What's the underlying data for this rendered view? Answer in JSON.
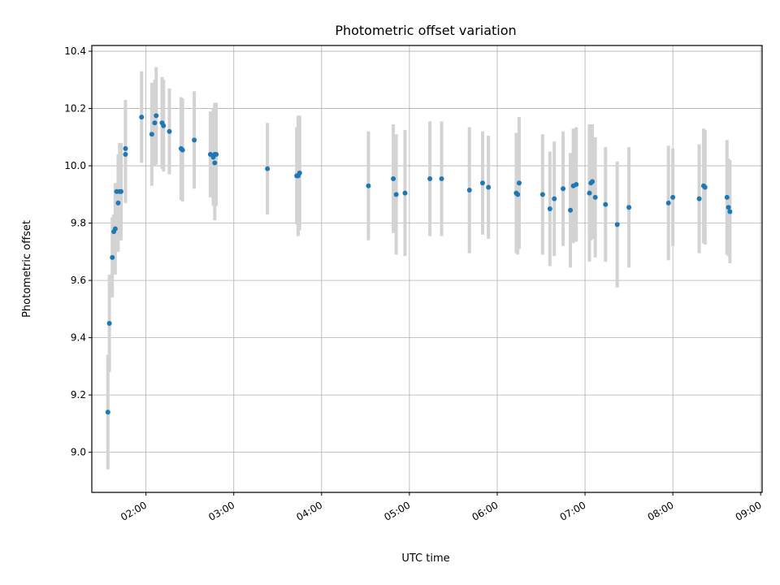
{
  "chart_data": {
    "type": "scatter",
    "title": "Photometric offset variation",
    "xlabel": "UTC time",
    "ylabel": "Photometric offset",
    "xlim": [
      "01:23",
      "09:01"
    ],
    "ylim": [
      8.86,
      10.42
    ],
    "xticks": [
      "02:00",
      "03:00",
      "04:00",
      "05:00",
      "06:00",
      "07:00",
      "08:00",
      "09:00"
    ],
    "yticks": [
      9.0,
      9.2,
      9.4,
      9.6,
      9.8,
      10.0,
      10.2,
      10.4
    ],
    "ytick_labels": [
      "9.0",
      "9.2",
      "9.4",
      "9.6",
      "9.8",
      "10.0",
      "10.2",
      "10.4"
    ],
    "grid": true,
    "colors": {
      "points": "#1f77b4",
      "errorbars": "#d3d3d3"
    },
    "series": [
      {
        "x": [
          "01:34",
          "01:35",
          "01:37",
          "01:38",
          "01:39",
          "01:40",
          "01:41",
          "01:42",
          "01:43",
          "01:46",
          "01:46",
          "01:57",
          "02:04",
          "02:06",
          "02:07",
          "02:11",
          "02:12",
          "02:16",
          "02:24",
          "02:25",
          "02:33",
          "02:44",
          "02:46",
          "02:47",
          "02:47",
          "02:48",
          "03:23",
          "03:43",
          "03:44",
          "03:45",
          "04:32",
          "04:49",
          "04:51",
          "04:57",
          "05:14",
          "05:22",
          "05:41",
          "05:50",
          "05:54",
          "06:13",
          "06:14",
          "06:15",
          "06:31",
          "06:36",
          "06:39",
          "06:45",
          "06:50",
          "06:52",
          "06:54",
          "07:03",
          "07:04",
          "07:05",
          "07:07",
          "07:14",
          "07:22",
          "07:30",
          "07:57",
          "08:00",
          "08:18",
          "08:21",
          "08:22",
          "08:37",
          "08:38",
          "08:39"
        ],
        "y": [
          9.14,
          9.45,
          9.68,
          9.77,
          9.78,
          9.91,
          9.87,
          9.91,
          9.91,
          10.06,
          10.04,
          10.17,
          10.11,
          10.15,
          10.175,
          10.15,
          10.14,
          10.12,
          10.06,
          10.055,
          10.09,
          10.04,
          10.03,
          10.01,
          10.04,
          10.04,
          9.99,
          9.965,
          9.965,
          9.975,
          9.93,
          9.955,
          9.9,
          9.905,
          9.955,
          9.955,
          9.915,
          9.94,
          9.925,
          9.905,
          9.9,
          9.94,
          9.9,
          9.85,
          9.885,
          9.92,
          9.845,
          9.93,
          9.935,
          9.905,
          9.94,
          9.945,
          9.89,
          9.865,
          9.795,
          9.855,
          9.87,
          9.89,
          9.885,
          9.93,
          9.925,
          9.89,
          9.855,
          9.84
        ],
        "yerr": [
          0.2,
          0.17,
          0.14,
          0.06,
          0.16,
          0.03,
          0.17,
          0.17,
          0.17,
          0.17,
          0.17,
          0.16,
          0.18,
          0.15,
          0.17,
          0.16,
          0.16,
          0.15,
          0.18,
          0.18,
          0.17,
          0.15,
          0.17,
          0.2,
          0.18,
          0.18,
          0.16,
          0.17,
          0.21,
          0.2,
          0.19,
          0.19,
          0.21,
          0.22,
          0.2,
          0.2,
          0.22,
          0.18,
          0.18,
          0.21,
          0.21,
          0.23,
          0.21,
          0.2,
          0.2,
          0.2,
          0.2,
          0.2,
          0.2,
          0.24,
          0.2,
          0.2,
          0.21,
          0.2,
          0.22,
          0.21,
          0.2,
          0.17,
          0.19,
          0.2,
          0.2,
          0.2,
          0.17,
          0.18
        ]
      }
    ]
  }
}
